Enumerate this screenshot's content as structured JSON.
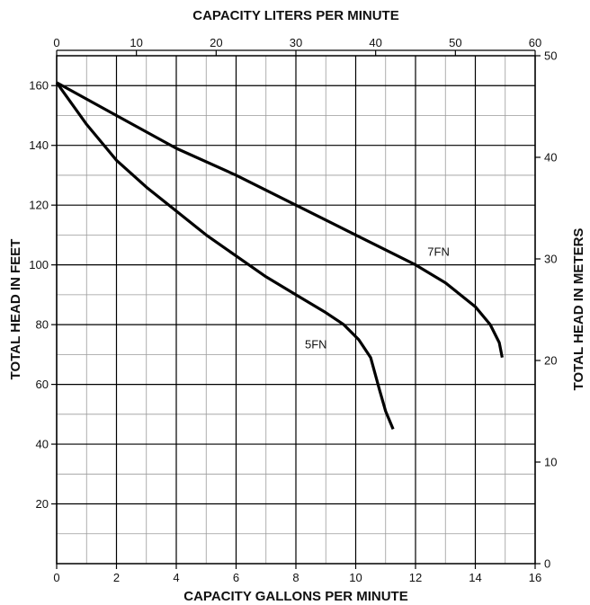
{
  "chart_data": {
    "type": "line",
    "title": "",
    "xlabel": "CAPACITY GALLONS PER MINUTE",
    "ylabel": "TOTAL HEAD IN FEET",
    "x2label": "CAPACITY LITERS PER MINUTE",
    "y2label": "TOTAL HEAD IN METERS",
    "xlim": [
      0,
      16
    ],
    "ylim": [
      0,
      170
    ],
    "x2lim": [
      0,
      60
    ],
    "y2lim": [
      0,
      50
    ],
    "x_ticks": [
      0,
      2,
      4,
      6,
      8,
      10,
      12,
      14,
      16
    ],
    "y_ticks": [
      20,
      40,
      60,
      80,
      100,
      120,
      140,
      160
    ],
    "x2_ticks": [
      0,
      10,
      20,
      30,
      40,
      50,
      60
    ],
    "y2_ticks": [
      0,
      10,
      20,
      30,
      40,
      50
    ],
    "x_tick_labels": [
      "0",
      "2",
      "4",
      "6",
      "8",
      "10",
      "12",
      "14",
      "16"
    ],
    "y_tick_labels": [
      "20",
      "40",
      "60",
      "80",
      "100",
      "120",
      "140",
      "160"
    ],
    "x2_tick_labels": [
      "0",
      "10",
      "20",
      "30",
      "40",
      "50",
      "60"
    ],
    "y2_tick_labels": [
      "0",
      "10",
      "20",
      "30",
      "40",
      "50"
    ],
    "grid": true,
    "series": [
      {
        "name": "5FN",
        "label_at": [
          8.3,
          72
        ],
        "points": [
          [
            0,
            161
          ],
          [
            1,
            147
          ],
          [
            2,
            135
          ],
          [
            3,
            126
          ],
          [
            4,
            118
          ],
          [
            5,
            110
          ],
          [
            6,
            103
          ],
          [
            7,
            96
          ],
          [
            8,
            90
          ],
          [
            9,
            84
          ],
          [
            9.6,
            80
          ],
          [
            10.1,
            75
          ],
          [
            10.5,
            69
          ],
          [
            10.8,
            58
          ],
          [
            11.0,
            51
          ],
          [
            11.25,
            45
          ]
        ]
      },
      {
        "name": "7FN",
        "label_at": [
          12.4,
          103
        ],
        "points": [
          [
            0,
            161
          ],
          [
            2,
            150
          ],
          [
            4,
            139
          ],
          [
            6,
            130
          ],
          [
            8,
            120
          ],
          [
            10,
            110
          ],
          [
            12,
            100
          ],
          [
            13,
            94
          ],
          [
            14,
            86
          ],
          [
            14.5,
            80
          ],
          [
            14.8,
            74
          ],
          [
            14.9,
            69
          ]
        ]
      }
    ]
  }
}
